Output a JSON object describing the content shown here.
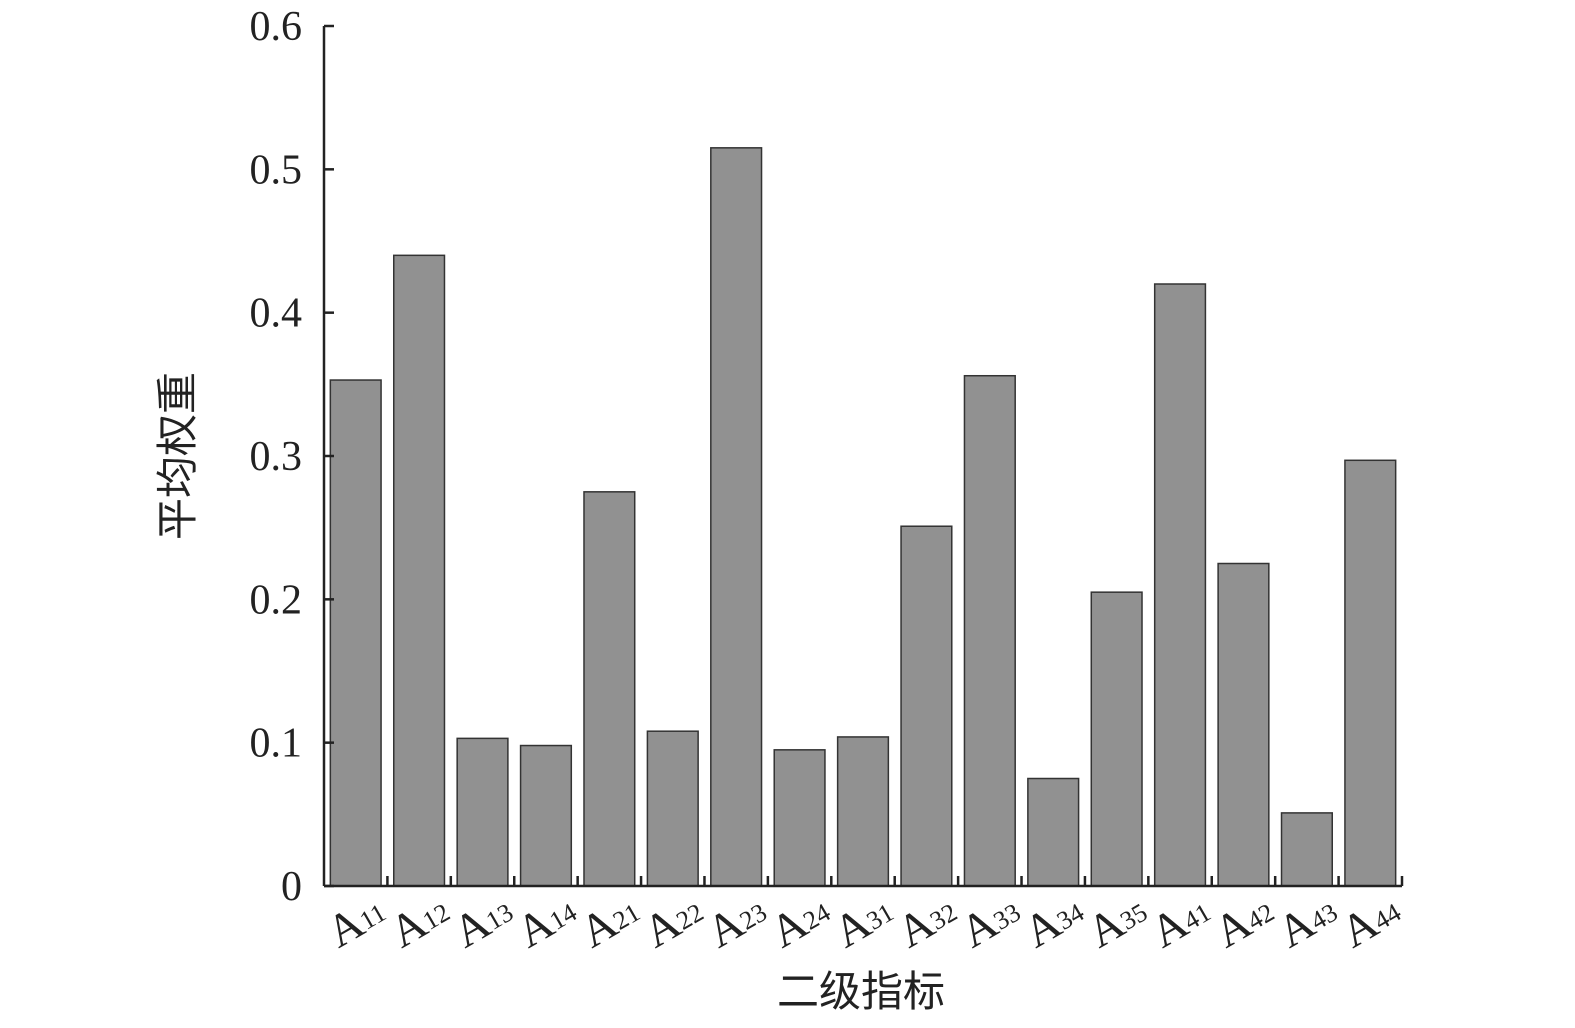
{
  "chart_data": {
    "type": "bar",
    "title": "",
    "xlabel": "二级指标",
    "ylabel": "平均权重",
    "ylim": [
      0,
      0.6
    ],
    "yticks": [
      "0",
      "0.1",
      "0.2",
      "0.3",
      "0.4",
      "0.5",
      "0.6"
    ],
    "grid": false,
    "bar_color": "#919191",
    "categories": [
      {
        "base": "A",
        "sub": "11"
      },
      {
        "base": "A",
        "sub": "12"
      },
      {
        "base": "A",
        "sub": "13"
      },
      {
        "base": "A",
        "sub": "14"
      },
      {
        "base": "A",
        "sub": "21"
      },
      {
        "base": "A",
        "sub": "22"
      },
      {
        "base": "A",
        "sub": "23"
      },
      {
        "base": "A",
        "sub": "24"
      },
      {
        "base": "A",
        "sub": "31"
      },
      {
        "base": "A",
        "sub": "32"
      },
      {
        "base": "A",
        "sub": "33"
      },
      {
        "base": "A",
        "sub": "34"
      },
      {
        "base": "A",
        "sub": "35"
      },
      {
        "base": "A",
        "sub": "41"
      },
      {
        "base": "A",
        "sub": "42"
      },
      {
        "base": "A",
        "sub": "43"
      },
      {
        "base": "A",
        "sub": "44"
      }
    ],
    "values": [
      0.353,
      0.44,
      0.103,
      0.098,
      0.275,
      0.108,
      0.515,
      0.095,
      0.104,
      0.251,
      0.356,
      0.075,
      0.205,
      0.42,
      0.225,
      0.051,
      0.297
    ]
  }
}
